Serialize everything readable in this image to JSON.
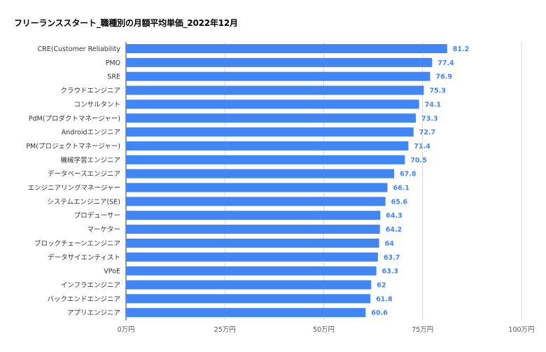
{
  "chart_data": {
    "type": "bar",
    "orientation": "horizontal",
    "title": "フリーランススタート_職種別の月額平均単価_2022年12月",
    "categories": [
      "CRE(Customer Reliability",
      "PMO",
      "SRE",
      "クラウドエンジニア",
      "コンサルタント",
      "PdM(プロダクトマネージャー)",
      "Androidエンジニア",
      "PM(プロジェクトマネージャー)",
      "機械学習エンジニア",
      "データベースエンジニア",
      "エンジニアリングマネージャー",
      "システムエンジニア(SE)",
      "プロデューサー",
      "マーケター",
      "ブロックチェーンエンジニア",
      "データサイエンティスト",
      "VPoE",
      "インフラエンジニア",
      "バックエンドエンジニア",
      "アプリエンジニア"
    ],
    "values": [
      81.2,
      77.4,
      76.9,
      75.3,
      74.1,
      73.3,
      72.7,
      71.4,
      70.5,
      67.8,
      66.1,
      65.6,
      64.3,
      64.2,
      64,
      63.7,
      63.3,
      62,
      61.8,
      60.6
    ],
    "value_labels": [
      "81.2",
      "77.4",
      "76.9",
      "75.3",
      "74.1",
      "73.3",
      "72.7",
      "71.4",
      "70.5",
      "67.8",
      "66.1",
      "65.6",
      "64.3",
      "64.2",
      "64",
      "63.7",
      "63.3",
      "62",
      "61.8",
      "60.6"
    ],
    "xlim": [
      0,
      100
    ],
    "x_ticks": [
      0,
      25,
      50,
      75,
      100
    ],
    "x_tick_labels": [
      "0万円",
      "25万円",
      "50万円",
      "75万円",
      "100万円"
    ],
    "grid": true,
    "legend": "none",
    "colors": {
      "bar": "#4285f4",
      "value_label": "#4285f4",
      "gridline": "#cccccc",
      "axis": "#333333"
    }
  }
}
